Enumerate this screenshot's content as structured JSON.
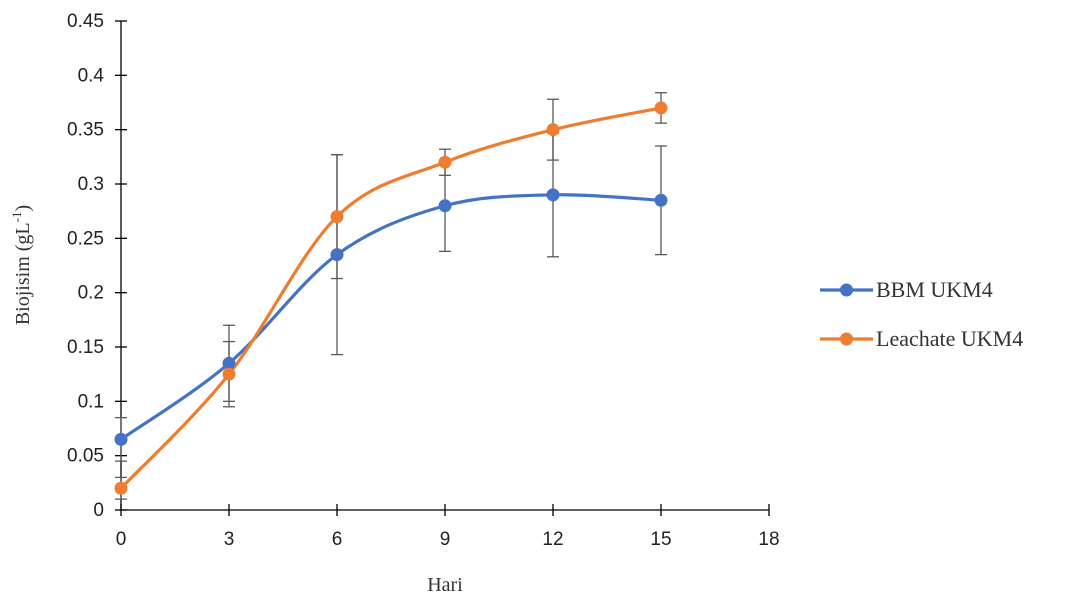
{
  "chart_data": {
    "type": "line",
    "title": "",
    "xlabel": "Hari",
    "ylabel": "Biojisim (gL⁻¹)",
    "ylabel_parts": {
      "main": "Biojisim (gL",
      "sup": "-1",
      "close": ")"
    },
    "xlim": [
      0,
      18
    ],
    "ylim": [
      0,
      0.45
    ],
    "xticks": [
      0,
      3,
      6,
      9,
      12,
      15,
      18
    ],
    "xtick_labels": [
      "0",
      "3",
      "6",
      "9",
      "12",
      "15",
      "18"
    ],
    "yticks": [
      0,
      0.05,
      0.1,
      0.15,
      0.2,
      0.25,
      0.3,
      0.35,
      0.4,
      0.45
    ],
    "ytick_labels": [
      "0",
      "0.05",
      "0.1",
      "0.15",
      "0.2",
      "0.25",
      "0.3",
      "0.35",
      "0.4",
      "0.45"
    ],
    "grid": false,
    "legend_position": "right",
    "x": [
      0,
      3,
      6,
      9,
      12,
      15
    ],
    "series": [
      {
        "name": "BBM UKM4",
        "color": "#4472C4",
        "values": [
          0.065,
          0.135,
          0.235,
          0.28,
          0.29,
          0.285
        ],
        "error": [
          0.02,
          0.035,
          0.092,
          0.042,
          0.057,
          0.05
        ]
      },
      {
        "name": "Leachate UKM4",
        "color": "#ED7D31",
        "values": [
          0.02,
          0.125,
          0.27,
          0.32,
          0.35,
          0.37
        ],
        "error": [
          0.01,
          0.03,
          0.057,
          0.012,
          0.028,
          0.014
        ]
      }
    ]
  }
}
